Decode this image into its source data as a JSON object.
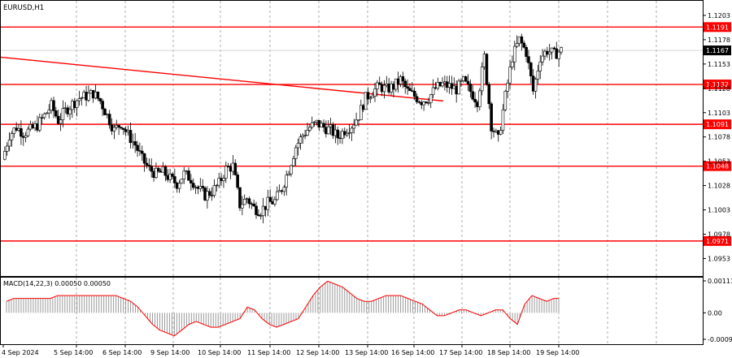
{
  "chart_data": {
    "type": "candlestick",
    "symbol_label": "EURUSD,H1",
    "price_axis": {
      "ticks": [
        "1.1203",
        "1.1178",
        "1.1153",
        "1.1128",
        "1.1103",
        "1.1078",
        "1.1053",
        "1.1028",
        "1.1003",
        "1.0978",
        "1.0953"
      ],
      "current_price": "1.1167",
      "ylim": [
        1.0935,
        1.1218
      ]
    },
    "time_axis": {
      "labels": [
        "4 Sep 2024",
        "5 Sep 14:00",
        "6 Sep 14:00",
        "9 Sep 14:00",
        "10 Sep 14:00",
        "11 Sep 14:00",
        "12 Sep 14:00",
        "13 Sep 14:00",
        "16 Sep 14:00",
        "17 Sep 14:00",
        "18 Sep 14:00",
        "19 Sep 14:00"
      ]
    },
    "levels": [
      {
        "label": "1.1191",
        "value": 1.1191
      },
      {
        "label": "1.1132",
        "value": 1.1132
      },
      {
        "label": "1.1091",
        "value": 1.1091
      },
      {
        "label": "1.1048",
        "value": 1.1048
      },
      {
        "label": "1.0971",
        "value": 1.0971
      }
    ],
    "trendline": {
      "from_value": 1.116,
      "to_value": 1.1115
    },
    "price_path": [
      1.1055,
      1.108,
      1.1088,
      1.1082,
      1.1085,
      1.109,
      1.11,
      1.111,
      1.1095,
      1.1105,
      1.1112,
      1.1118,
      1.112,
      1.1123,
      1.1115,
      1.11,
      1.1085,
      1.1092,
      1.108,
      1.107,
      1.1055,
      1.1045,
      1.104,
      1.1042,
      1.1035,
      1.103,
      1.104,
      1.1035,
      1.1025,
      1.1018,
      1.1022,
      1.103,
      1.1045,
      1.1048,
      1.1008,
      1.1015,
      1.1005,
      1.1002,
      1.101,
      1.1012,
      1.1025,
      1.1045,
      1.1068,
      1.108,
      1.1088,
      1.1092,
      1.1088,
      1.1085,
      1.1078,
      1.1085,
      1.109,
      1.11,
      1.1118,
      1.1125,
      1.113,
      1.1127,
      1.113,
      1.1137,
      1.1125,
      1.112,
      1.1115,
      1.1118,
      1.1128,
      1.1132,
      1.113,
      1.1127,
      1.1135,
      1.1125,
      1.1115,
      1.116,
      1.109,
      1.1075,
      1.112,
      1.116,
      1.1178,
      1.1165,
      1.1125,
      1.116,
      1.1167,
      1.1163,
      1.1167
    ],
    "macd": {
      "label": "MACD(14,22,3) 0.00050 0.00050",
      "ticks": [
        "0.00111",
        "0.00",
        "-0.00092"
      ],
      "ylim": [
        -0.00092,
        0.00111
      ],
      "values": [
        0.0004,
        0.0005,
        0.0005,
        0.0005,
        0.0005,
        0.0005,
        0.0005,
        0.0006,
        0.0006,
        0.0006,
        0.0006,
        0.0006,
        0.0006,
        0.0006,
        0.0006,
        0.0006,
        0.0005,
        0.0004,
        0.0002,
        -0.0001,
        -0.0004,
        -0.0006,
        -0.0007,
        -0.0008,
        -0.0006,
        -0.0004,
        -0.0003,
        -0.0004,
        -0.0005,
        -0.0005,
        -0.0004,
        -0.0003,
        -0.0002,
        0.0002,
        0.0001,
        -0.0002,
        -0.0004,
        -0.0005,
        -0.0004,
        -0.0003,
        -0.0002,
        0.0002,
        0.0006,
        0.0009,
        0.0011,
        0.001,
        0.0009,
        0.0007,
        0.0005,
        0.0004,
        0.0004,
        0.0005,
        0.0006,
        0.0006,
        0.0006,
        0.0005,
        0.0004,
        0.0003,
        0.0001,
        -0.0001,
        -0.0001,
        0.0,
        0.0001,
        0.0001,
        0.0,
        -0.0001,
        0.0,
        0.0001,
        0.0001,
        -0.0002,
        -0.0004,
        0.0003,
        0.0006,
        0.0005,
        0.0004,
        0.0005,
        0.0005
      ]
    }
  }
}
